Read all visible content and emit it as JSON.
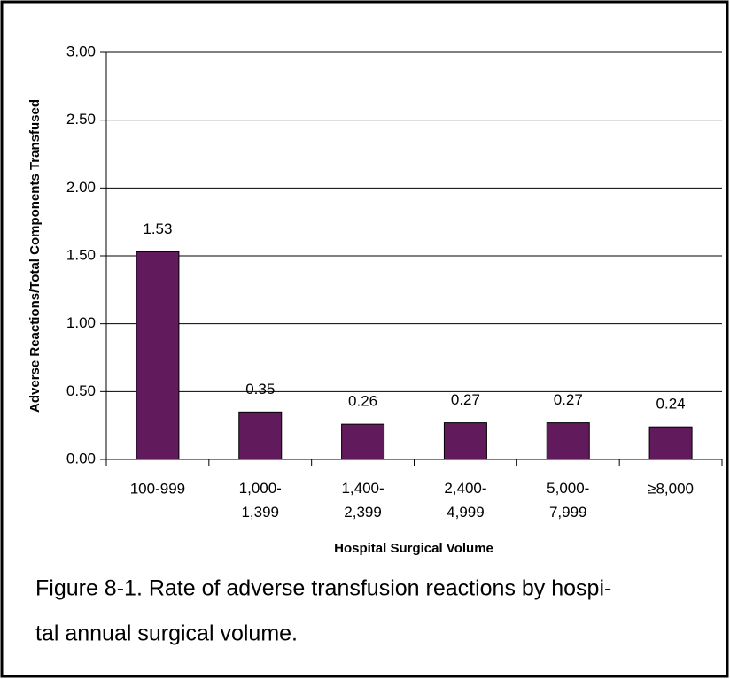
{
  "chart_data": {
    "type": "bar",
    "categories": [
      "100-999",
      "1,000-\n1,399",
      "1,400-\n2,399",
      "2,400-\n4,999",
      "5,000-\n7,999",
      "≥8,000"
    ],
    "values": [
      1.53,
      0.35,
      0.26,
      0.27,
      0.27,
      0.24
    ],
    "color": "#611a5c",
    "xlabel": "Hospital Surgical Volume",
    "ylabel": "Adverse Reactions/Total Components Transfused",
    "ylim": [
      0,
      3
    ],
    "yticks": [
      {
        "value": 0,
        "label": "0.00"
      },
      {
        "value": 0.5,
        "label": "0.50"
      },
      {
        "value": 1,
        "label": "1.00"
      },
      {
        "value": 1.5,
        "label": "1.50"
      },
      {
        "value": 2,
        "label": "2.00"
      },
      {
        "value": 2.5,
        "label": "2.50"
      },
      {
        "value": 3,
        "label": "3.00"
      }
    ],
    "grid": true
  },
  "caption": [
    "Figure 8-1. Rate of adverse transfusion reactions by hospi-",
    "tal annual surgical volume."
  ]
}
